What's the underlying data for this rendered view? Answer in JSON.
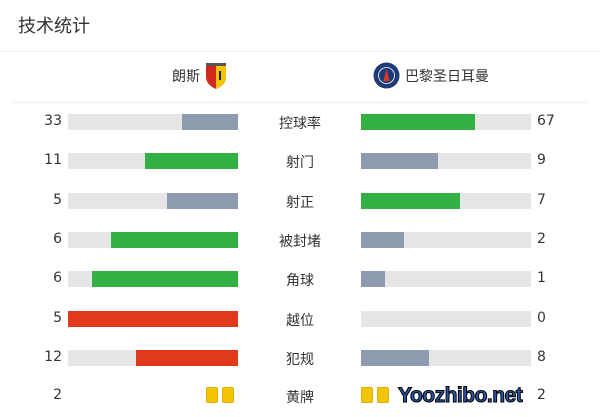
{
  "title": "技术统计",
  "home": {
    "name": "朗斯"
  },
  "away": {
    "name": "巴黎圣日耳曼"
  },
  "colors": {
    "green": "#33b044",
    "gray": "#8e9aad",
    "red": "#e0391c",
    "track": "#e6e6e6",
    "card": "#f5c400"
  },
  "stats": [
    {
      "label": "控球率",
      "home": "33",
      "away": "67",
      "home_color": "#8e9aad",
      "away_color": "#33b044"
    },
    {
      "label": "射门",
      "home": "11",
      "away": "9",
      "home_color": "#33b044",
      "away_color": "#8e9aad"
    },
    {
      "label": "射正",
      "home": "5",
      "away": "7",
      "home_color": "#8e9aad",
      "away_color": "#33b044"
    },
    {
      "label": "被封堵",
      "home": "6",
      "away": "2",
      "home_color": "#33b044",
      "away_color": "#8e9aad"
    },
    {
      "label": "角球",
      "home": "6",
      "away": "1",
      "home_color": "#33b044",
      "away_color": "#8e9aad"
    },
    {
      "label": "越位",
      "home": "5",
      "away": "0",
      "home_color": "#e0391c",
      "away_color": "#8e9aad"
    },
    {
      "label": "犯规",
      "home": "12",
      "away": "8",
      "home_color": "#e0391c",
      "away_color": "#8e9aad"
    }
  ],
  "yellow": {
    "label": "黄牌",
    "home": "2",
    "away": "2"
  },
  "watermark": "Yoozhibo.net"
}
